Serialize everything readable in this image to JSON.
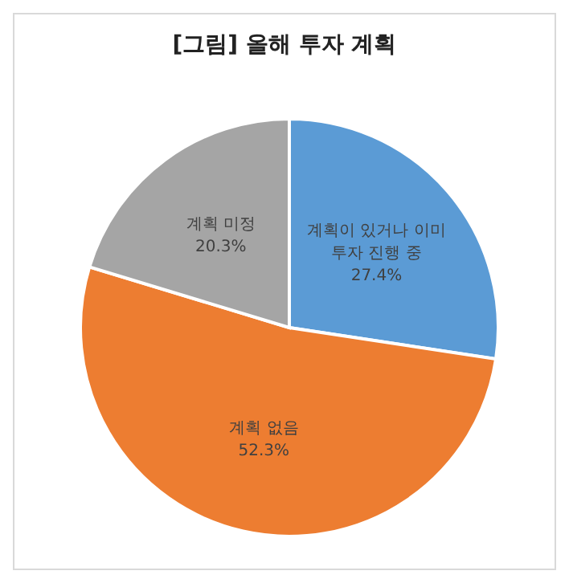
{
  "chart_data": {
    "type": "pie",
    "title": "[그림] 올해 투자 계획",
    "categories": [
      "계획이 있거나 이미 투자 진행 중",
      "계획 없음",
      "계획 미정"
    ],
    "values": [
      27.4,
      52.3,
      20.3
    ],
    "value_labels": [
      "27.4%",
      "52.3%",
      "20.3%"
    ],
    "colors": [
      "#5b9bd5",
      "#ed7d31",
      "#a5a5a5"
    ]
  }
}
